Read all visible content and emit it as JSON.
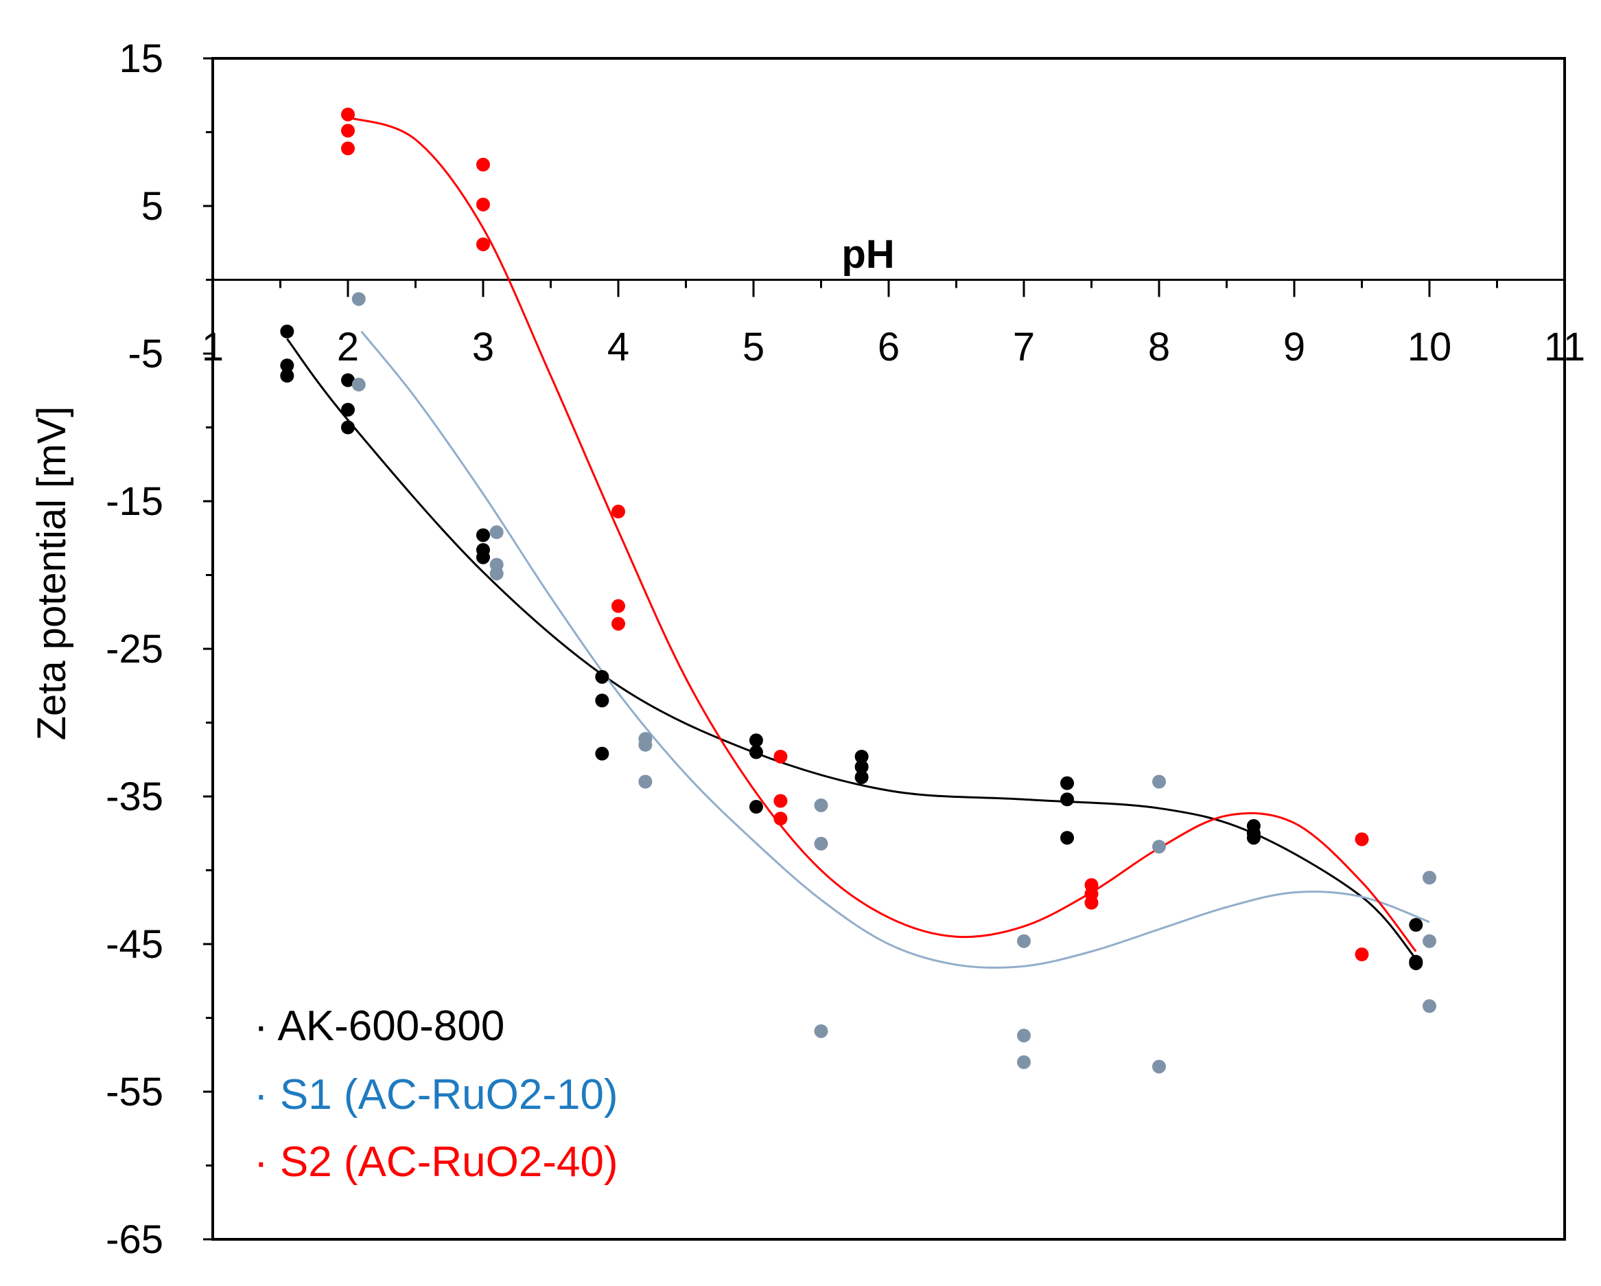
{
  "chart_data": {
    "type": "scatter",
    "title": "",
    "xlabel": "pH",
    "ylabel": "Zeta potential [mV]",
    "xlim": [
      1,
      11
    ],
    "ylim": [
      -65,
      15
    ],
    "xticks": [
      1,
      2,
      3,
      4,
      5,
      6,
      7,
      8,
      9,
      10,
      11
    ],
    "yticks": [
      15,
      5,
      -5,
      -15,
      -25,
      -35,
      -45,
      -55,
      -65
    ],
    "xtick_labels": [
      "1",
      "2",
      "3",
      "4",
      "5",
      "6",
      "7",
      "8",
      "9",
      "10",
      "11"
    ],
    "ytick_labels": [
      "15",
      "5",
      "-5",
      "-15",
      "-25",
      "-35",
      "-45",
      "-55",
      "-65"
    ],
    "x_axis_crossing_y": 0,
    "grid": false,
    "legend_position": "bottom-left",
    "series": [
      {
        "name": "AK-600-800",
        "legend_marker": "·",
        "color": "#000000",
        "label_color": "#000000",
        "points": [
          [
            1.55,
            -3.5
          ],
          [
            1.55,
            -5.8
          ],
          [
            1.55,
            -6.5
          ],
          [
            2.0,
            -6.8
          ],
          [
            2.0,
            -8.8
          ],
          [
            2.0,
            -10.0
          ],
          [
            3.0,
            -17.3
          ],
          [
            3.0,
            -18.3
          ],
          [
            3.0,
            -18.8
          ],
          [
            3.88,
            -26.9
          ],
          [
            3.88,
            -28.5
          ],
          [
            3.88,
            -32.1
          ],
          [
            5.02,
            -31.2
          ],
          [
            5.02,
            -32.0
          ],
          [
            5.02,
            -35.7
          ],
          [
            5.8,
            -32.3
          ],
          [
            5.8,
            -33.0
          ],
          [
            5.8,
            -33.7
          ],
          [
            7.32,
            -34.1
          ],
          [
            7.32,
            -35.2
          ],
          [
            7.32,
            -37.8
          ],
          [
            8.7,
            -37.0
          ],
          [
            8.7,
            -37.5
          ],
          [
            8.7,
            -37.8
          ],
          [
            9.9,
            -43.7
          ],
          [
            9.9,
            -46.2
          ],
          [
            9.9,
            -46.3
          ]
        ],
        "trendline": [
          [
            1.55,
            -4.0
          ],
          [
            2,
            -9.5
          ],
          [
            3,
            -19.8
          ],
          [
            4,
            -27.5
          ],
          [
            5,
            -32.0
          ],
          [
            6,
            -34.6
          ],
          [
            7,
            -35.2
          ],
          [
            8,
            -35.8
          ],
          [
            8.7,
            -37.5
          ],
          [
            9.5,
            -41.8
          ],
          [
            9.9,
            -46.0
          ]
        ]
      },
      {
        "name": "S1 (AC-RuO2-10)",
        "legend_marker": "·",
        "color": "#7f93a8",
        "trend_color": "#93aecb",
        "label_color": "#1f7bc0",
        "points": [
          [
            2.08,
            -1.3
          ],
          [
            2.08,
            -7.1
          ],
          [
            3.1,
            -17.1
          ],
          [
            3.1,
            -19.3
          ],
          [
            3.1,
            -19.9
          ],
          [
            4.2,
            -31.1
          ],
          [
            4.2,
            -31.5
          ],
          [
            4.2,
            -34.0
          ],
          [
            5.5,
            -35.6
          ],
          [
            5.5,
            -38.2
          ],
          [
            5.5,
            -50.9
          ],
          [
            7.0,
            -44.8
          ],
          [
            7.0,
            -51.2
          ],
          [
            7.0,
            -53.0
          ],
          [
            8.0,
            -34.0
          ],
          [
            8.0,
            -38.4
          ],
          [
            8.0,
            -53.3
          ],
          [
            10.0,
            -40.5
          ],
          [
            10.0,
            -44.8
          ],
          [
            10.0,
            -49.2
          ]
        ],
        "trendline": [
          [
            2.1,
            -3.5
          ],
          [
            2.5,
            -8.0
          ],
          [
            3,
            -14.5
          ],
          [
            3.5,
            -21.5
          ],
          [
            4,
            -28.0
          ],
          [
            4.5,
            -33.5
          ],
          [
            5,
            -38.0
          ],
          [
            5.5,
            -42.0
          ],
          [
            6,
            -45.0
          ],
          [
            6.5,
            -46.4
          ],
          [
            7,
            -46.5
          ],
          [
            7.5,
            -45.5
          ],
          [
            8,
            -44.0
          ],
          [
            8.5,
            -42.5
          ],
          [
            9,
            -41.5
          ],
          [
            9.5,
            -41.8
          ],
          [
            10,
            -43.5
          ]
        ]
      },
      {
        "name": "S2 (AC-RuO2-40)",
        "legend_marker": "·",
        "color": "#ff0000",
        "label_color": "#ff0000",
        "points": [
          [
            2.0,
            11.2
          ],
          [
            2.0,
            10.1
          ],
          [
            2.0,
            8.9
          ],
          [
            3.0,
            7.8
          ],
          [
            3.0,
            5.1
          ],
          [
            3.0,
            2.4
          ],
          [
            4.0,
            -15.7
          ],
          [
            4.0,
            -22.1
          ],
          [
            4.0,
            -23.3
          ],
          [
            5.2,
            -32.3
          ],
          [
            5.2,
            -35.3
          ],
          [
            5.2,
            -36.5
          ],
          [
            7.5,
            -41.0
          ],
          [
            7.5,
            -41.6
          ],
          [
            7.5,
            -42.2
          ],
          [
            9.5,
            -37.9
          ],
          [
            9.5,
            -45.7
          ]
        ],
        "trendline": [
          [
            2,
            11.0
          ],
          [
            2.5,
            9.5
          ],
          [
            3,
            3.5
          ],
          [
            3.5,
            -6.5
          ],
          [
            4,
            -17.0
          ],
          [
            4.5,
            -27.0
          ],
          [
            5,
            -34.5
          ],
          [
            5.5,
            -40.0
          ],
          [
            6,
            -43.2
          ],
          [
            6.5,
            -44.5
          ],
          [
            7,
            -43.8
          ],
          [
            7.5,
            -41.5
          ],
          [
            8,
            -38.5
          ],
          [
            8.5,
            -36.3
          ],
          [
            9,
            -36.8
          ],
          [
            9.5,
            -40.8
          ],
          [
            9.9,
            -45.5
          ]
        ]
      }
    ]
  }
}
